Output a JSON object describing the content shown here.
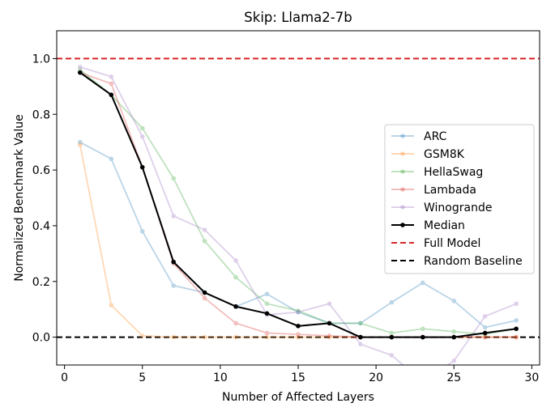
{
  "chart_data": {
    "type": "line",
    "title": "Skip: Llama2-7b",
    "xlabel": "Number of Affected Layers",
    "ylabel": "Normalized Benchmark Value",
    "xlim": [
      -0.5,
      30.5
    ],
    "ylim": [
      -0.1,
      1.1
    ],
    "xticks": [
      0,
      5,
      10,
      15,
      20,
      25,
      30
    ],
    "yticks": [
      0.0,
      0.2,
      0.4,
      0.6,
      0.8,
      1.0
    ],
    "xtick_labels": [
      "0",
      "5",
      "10",
      "15",
      "20",
      "25",
      "30"
    ],
    "ytick_labels": [
      "0.0",
      "0.2",
      "0.4",
      "0.6",
      "0.8",
      "1.0"
    ],
    "grid": false,
    "legend_position": "center-right",
    "x": [
      1,
      3,
      5,
      7,
      9,
      11,
      13,
      15,
      17,
      19,
      21,
      23,
      25,
      27,
      29
    ],
    "series": [
      {
        "name": "ARC",
        "color": "#1f77b4",
        "alpha": 0.3,
        "values": [
          0.7,
          0.64,
          0.38,
          0.185,
          0.16,
          0.11,
          0.155,
          0.09,
          0.05,
          0.05,
          0.125,
          0.195,
          0.13,
          0.035,
          0.06
        ]
      },
      {
        "name": "GSM8K",
        "color": "#ff7f0e",
        "alpha": 0.3,
        "values": [
          0.69,
          0.115,
          0.005,
          0.0,
          0.0,
          0.0,
          0.0,
          0.0,
          0.0,
          0.0,
          0.0,
          0.0,
          0.0,
          0.0,
          0.0
        ]
      },
      {
        "name": "HellaSwag",
        "color": "#2ca02c",
        "alpha": 0.3,
        "values": [
          0.96,
          0.87,
          0.75,
          0.57,
          0.345,
          0.215,
          0.12,
          0.095,
          0.05,
          0.05,
          0.015,
          0.03,
          0.02,
          0.01,
          0.03
        ]
      },
      {
        "name": "Lambada",
        "color": "#d62728",
        "alpha": 0.3,
        "values": [
          0.95,
          0.91,
          0.61,
          0.265,
          0.14,
          0.05,
          0.015,
          0.01,
          0.005,
          0.0,
          0.0,
          0.0,
          0.0,
          0.0,
          0.0
        ]
      },
      {
        "name": "Winogrande",
        "color": "#9467bd",
        "alpha": 0.3,
        "values": [
          0.97,
          0.935,
          0.72,
          0.435,
          0.385,
          0.275,
          0.08,
          0.09,
          0.12,
          -0.025,
          -0.065,
          -0.16,
          -0.085,
          0.075,
          0.12
        ]
      },
      {
        "name": "Median",
        "color": "#000000",
        "alpha": 1.0,
        "values": [
          0.95,
          0.87,
          0.61,
          0.27,
          0.16,
          0.11,
          0.085,
          0.04,
          0.05,
          0.0,
          0.0,
          0.0,
          0.0,
          0.015,
          0.03
        ]
      }
    ],
    "reference_lines": [
      {
        "name": "Full Model",
        "y": 1.0,
        "color": "#d62728",
        "style": "dashed"
      },
      {
        "name": "Random Baseline",
        "y": 0.0,
        "color": "#000000",
        "style": "dashed"
      }
    ]
  }
}
